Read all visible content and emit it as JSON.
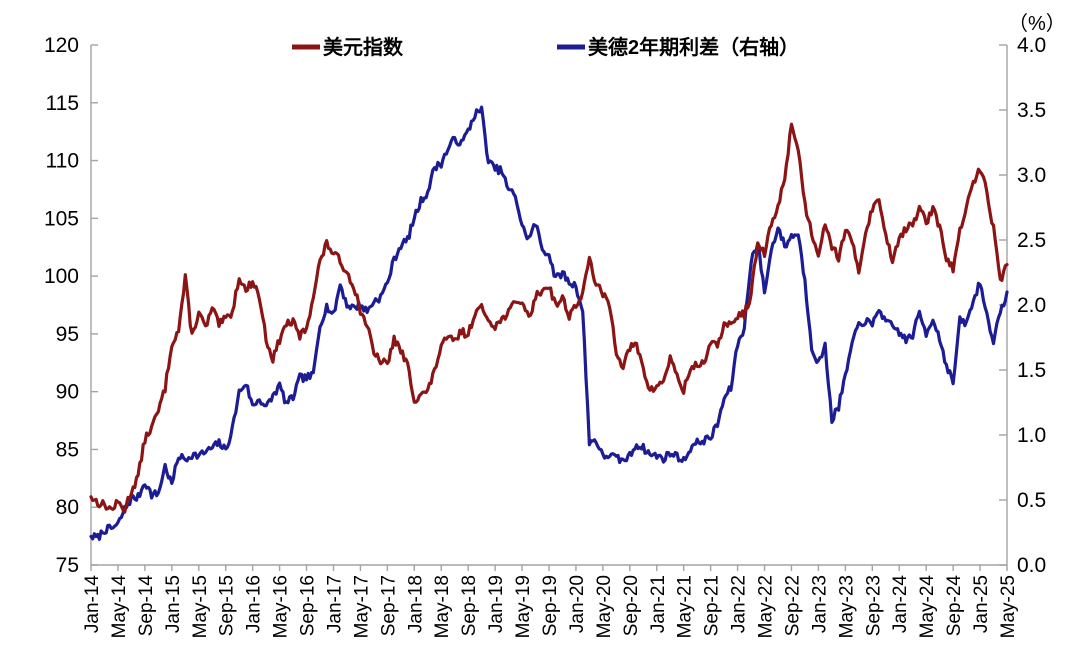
{
  "chart_data": {
    "type": "line",
    "title": "",
    "right_axis_unit": "（%）",
    "legend_position": "top",
    "grid": false,
    "background": "#ffffff",
    "axis_line_color": "#a3a3a3",
    "text_color": "#000000",
    "x": {
      "months_count": 137,
      "start_label": "Jan-14",
      "end_label": "May-25",
      "tick_every_months": 4,
      "tick_labels": [
        "Jan-14",
        "May-14",
        "Sep-14",
        "Jan-15",
        "May-15",
        "Sep-15",
        "Jan-16",
        "May-16",
        "Sep-16",
        "Jan-17",
        "May-17",
        "Sep-17",
        "Jan-18",
        "May-18",
        "Sep-18",
        "Jan-19",
        "May-19",
        "Sep-19",
        "Jan-20",
        "May-20",
        "Sep-20",
        "Jan-21",
        "May-21",
        "Sep-21",
        "Jan-22",
        "May-22",
        "Sep-22",
        "Jan-23",
        "May-23",
        "Sep-23",
        "Jan-24",
        "May-24",
        "Sep-24",
        "Jan-25",
        "May-25"
      ]
    },
    "left_axis": {
      "min": 75,
      "max": 120,
      "step": 5,
      "tick_values": [
        75,
        80,
        85,
        90,
        95,
        100,
        105,
        110,
        115,
        120
      ],
      "tick_labels": [
        "75",
        "80",
        "85",
        "90",
        "95",
        "100",
        "105",
        "110",
        "115",
        "120"
      ]
    },
    "right_axis": {
      "min": 0.0,
      "max": 4.0,
      "step": 0.5,
      "tick_values": [
        0,
        0.5,
        1,
        1.5,
        2,
        2.5,
        3,
        3.5,
        4
      ],
      "tick_labels": [
        "0.0",
        "0.5",
        "1.0",
        "1.5",
        "2.0",
        "2.5",
        "3.0",
        "3.5",
        "4.0"
      ]
    },
    "series": [
      {
        "name": "美元指数",
        "axis": "left",
        "color": "#8B1414",
        "values": [
          80.9,
          80.4,
          80.2,
          79.8,
          80.4,
          79.8,
          81.4,
          82.7,
          85.9,
          86.9,
          88.3,
          90.3,
          94.2,
          95.3,
          99.8,
          94.8,
          96.9,
          95.5,
          97.2,
          95.8,
          96.3,
          96.9,
          100.0,
          98.7,
          99.6,
          98.2,
          94.6,
          92.8,
          94.5,
          95.9,
          96.0,
          94.8,
          95.5,
          98.3,
          101.3,
          102.8,
          102.0,
          101.3,
          100.3,
          99.2,
          97.0,
          95.8,
          93.2,
          92.7,
          92.3,
          94.6,
          93.5,
          92.3,
          89.3,
          89.8,
          90.0,
          91.8,
          94.0,
          94.6,
          94.4,
          95.2,
          94.9,
          96.9,
          97.2,
          96.3,
          95.7,
          96.2,
          97.0,
          97.6,
          97.9,
          96.3,
          98.2,
          98.8,
          99.2,
          97.5,
          98.1,
          96.6,
          97.5,
          98.4,
          101.5,
          99.3,
          98.4,
          97.5,
          93.5,
          92.2,
          93.8,
          94.0,
          92.0,
          90.0,
          90.5,
          90.9,
          93.0,
          91.3,
          90.1,
          92.0,
          92.3,
          92.6,
          94.0,
          94.1,
          95.8,
          95.7,
          96.6,
          96.7,
          98.4,
          102.8,
          101.9,
          104.5,
          106.0,
          108.5,
          113.2,
          111.0,
          106.2,
          103.7,
          102.0,
          104.7,
          102.6,
          101.6,
          104.1,
          102.8,
          100.5,
          103.8,
          105.9,
          106.5,
          103.6,
          101.4,
          103.4,
          104.1,
          104.4,
          106.0,
          104.6,
          105.8,
          104.2,
          101.6,
          100.6,
          103.9,
          105.9,
          108.1,
          109.3,
          107.4,
          104.1,
          99.6,
          101.0
        ]
      },
      {
        "name": "美德2年期利差（右轴）",
        "axis": "right",
        "color": "#1C1C94",
        "values": [
          0.22,
          0.21,
          0.27,
          0.28,
          0.31,
          0.43,
          0.51,
          0.52,
          0.64,
          0.54,
          0.55,
          0.76,
          0.62,
          0.84,
          0.81,
          0.85,
          0.84,
          0.87,
          0.9,
          0.94,
          0.88,
          1.05,
          1.33,
          1.4,
          1.22,
          1.28,
          1.21,
          1.3,
          1.38,
          1.24,
          1.29,
          1.44,
          1.44,
          1.46,
          1.85,
          1.99,
          1.92,
          2.16,
          2.0,
          1.98,
          2.0,
          1.95,
          2.03,
          2.06,
          2.17,
          2.35,
          2.46,
          2.5,
          2.67,
          2.8,
          2.87,
          3.06,
          3.09,
          3.2,
          3.28,
          3.24,
          3.34,
          3.47,
          3.5,
          3.1,
          3.05,
          3.03,
          2.88,
          2.85,
          2.6,
          2.51,
          2.63,
          2.43,
          2.39,
          2.2,
          2.25,
          2.17,
          2.15,
          1.95,
          0.95,
          0.96,
          0.83,
          0.85,
          0.82,
          0.8,
          0.84,
          0.93,
          0.9,
          0.85,
          0.84,
          0.82,
          0.86,
          0.84,
          0.8,
          0.9,
          0.94,
          0.96,
          0.98,
          1.08,
          1.28,
          1.36,
          1.7,
          1.82,
          2.35,
          2.47,
          2.1,
          2.42,
          2.6,
          2.45,
          2.53,
          2.55,
          2.18,
          1.68,
          1.55,
          1.68,
          1.12,
          1.22,
          1.45,
          1.7,
          1.85,
          1.88,
          1.84,
          1.98,
          1.86,
          1.84,
          1.79,
          1.73,
          1.77,
          1.94,
          1.78,
          1.9,
          1.74,
          1.54,
          1.4,
          1.88,
          1.86,
          2.03,
          2.18,
          1.92,
          1.73,
          1.93,
          2.1
        ]
      }
    ]
  }
}
